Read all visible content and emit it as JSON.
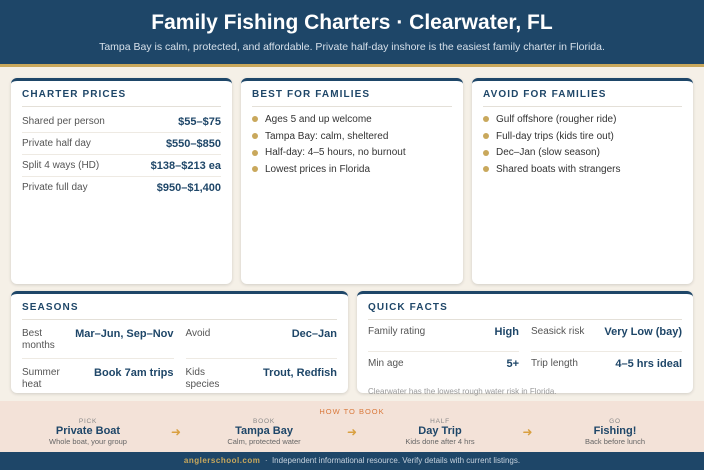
{
  "header": {
    "title": "Family Fishing Charters · Clearwater, FL",
    "subtitle": "Tampa Bay is calm, protected, and affordable. Private half-day inshore is the easiest family charter in Florida."
  },
  "charter_prices": {
    "title": "CHARTER PRICES",
    "rows": [
      [
        "Shared per person",
        "$55–$75"
      ],
      [
        "Private half day",
        "$550–$850"
      ],
      [
        "Split 4 ways (HD)",
        "$138–$213 ea"
      ],
      [
        "Private full day",
        "$950–$1,400"
      ]
    ]
  },
  "best_for_families": {
    "title": "BEST FOR FAMILIES",
    "items": [
      "Ages 5 and up welcome",
      "Tampa Bay: calm, sheltered",
      "Half-day: 4–5 hours, no burnout",
      "Lowest prices in Florida"
    ]
  },
  "avoid_for_families": {
    "title": "AVOID FOR FAMILIES",
    "items": [
      "Gulf offshore (rougher ride)",
      "Full-day trips (kids tire out)",
      "Dec–Jan (slow season)",
      "Shared boats with strangers"
    ]
  },
  "seasons": {
    "title": "SEASONS",
    "rows": [
      [
        [
          "Best months",
          "Mar–Jun, Sep–Nov"
        ],
        [
          "Avoid",
          "Dec–Jan"
        ]
      ],
      [
        [
          "Summer heat",
          "Book 7am trips"
        ],
        [
          "Kids species",
          "Trout, Redfish"
        ]
      ]
    ]
  },
  "quick_facts": {
    "title": "QUICK FACTS",
    "rows": [
      [
        [
          "Family rating",
          "High"
        ],
        [
          "Seasick risk",
          "Very Low (bay)"
        ]
      ],
      [
        [
          "Min age",
          "5+"
        ],
        [
          "Trip length",
          "4–5 hrs ideal"
        ]
      ]
    ],
    "note": "Clearwater has the lowest rough water risk in Florida."
  },
  "how_to_book": {
    "title": "HOW TO BOOK",
    "steps": [
      {
        "kicker": "PICK",
        "title": "Private Boat",
        "subtitle": "Whole boat, your group"
      },
      {
        "kicker": "BOOK",
        "title": "Tampa Bay",
        "subtitle": "Calm, protected water"
      },
      {
        "kicker": "HALF",
        "title": "Day Trip",
        "subtitle": "Kids done after 4 hrs"
      },
      {
        "kicker": "GO",
        "title": "Fishing!",
        "subtitle": "Back before lunch"
      }
    ]
  },
  "footer": {
    "site": "anglerschool.com",
    "text": "Independent informational resource. Verify details with current listings."
  }
}
